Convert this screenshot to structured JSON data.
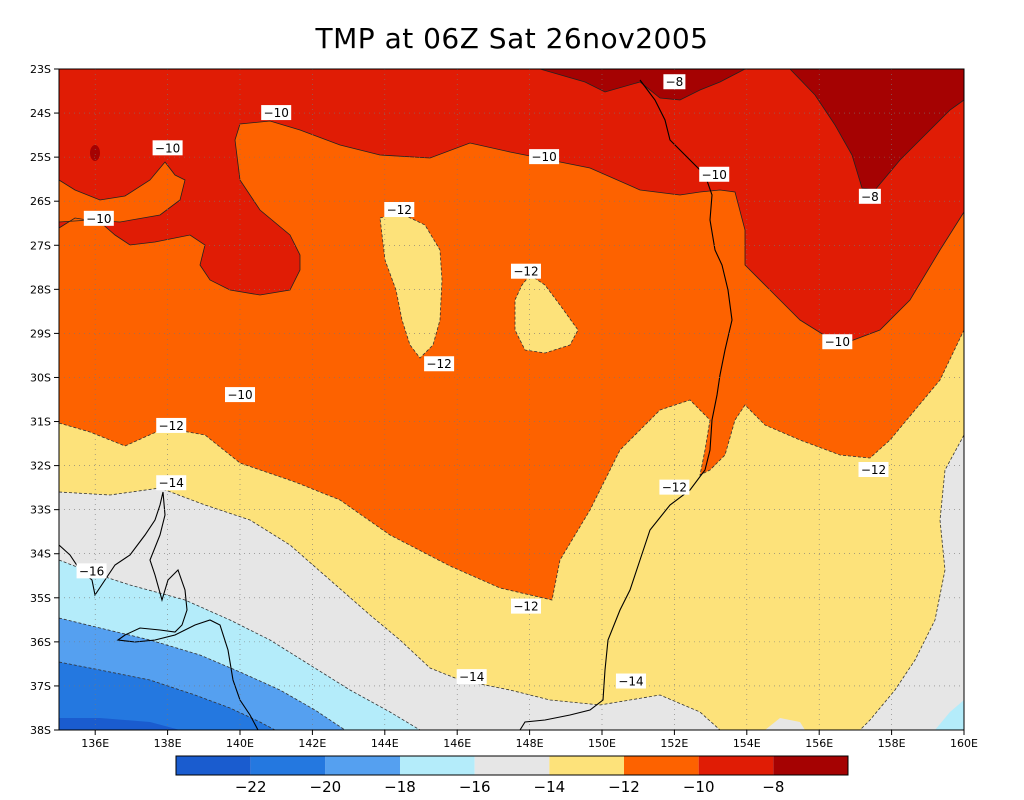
{
  "title": "TMP at 06Z Sat 26nov2005",
  "colors": {
    "band_below_-22": "#1a5ccf",
    "band_-22_-20": "#2478e0",
    "band_-20_-18": "#55a0f0",
    "band_-18_-16": "#b4ecfa",
    "band_-16_-14": "#e6e6e6",
    "band_-14_-12": "#fde27a",
    "band_-12_-10": "#fd6200",
    "band_-10_-8": "#e01c05",
    "band_above_-8": "#a50202"
  },
  "axes": {
    "lon_ticks": [
      "136E",
      "138E",
      "140E",
      "142E",
      "144E",
      "146E",
      "148E",
      "150E",
      "152E",
      "154E",
      "156E",
      "158E",
      "160E"
    ],
    "lat_ticks": [
      "23S",
      "24S",
      "25S",
      "26S",
      "27S",
      "28S",
      "29S",
      "30S",
      "31S",
      "32S",
      "33S",
      "34S",
      "35S",
      "36S",
      "37S",
      "38S"
    ],
    "lon_range": [
      135,
      160
    ],
    "lat_range": [
      -38,
      -23
    ],
    "grid": "dotted"
  },
  "contour_labels": [
    {
      "text": "-8",
      "lon": 152.0,
      "lat": -23.3
    },
    {
      "text": "-8",
      "lon": 157.4,
      "lat": -25.9
    },
    {
      "text": "-10",
      "lon": 141.0,
      "lat": -24.0
    },
    {
      "text": "-10",
      "lon": 138.0,
      "lat": -24.8
    },
    {
      "text": "-10",
      "lon": 136.1,
      "lat": -26.4
    },
    {
      "text": "-10",
      "lon": 148.4,
      "lat": -25.0
    },
    {
      "text": "-10",
      "lon": 153.1,
      "lat": -25.4
    },
    {
      "text": "-10",
      "lon": 140.0,
      "lat": -30.4
    },
    {
      "text": "-10",
      "lon": 156.5,
      "lat": -29.2
    },
    {
      "text": "-12",
      "lon": 144.4,
      "lat": -26.2
    },
    {
      "text": "-12",
      "lon": 147.9,
      "lat": -27.6
    },
    {
      "text": "-12",
      "lon": 145.5,
      "lat": -29.7
    },
    {
      "text": "-12",
      "lon": 138.1,
      "lat": -31.1
    },
    {
      "text": "-12",
      "lon": 152.0,
      "lat": -32.5
    },
    {
      "text": "-12",
      "lon": 157.5,
      "lat": -32.1
    },
    {
      "text": "-12",
      "lon": 147.9,
      "lat": -35.2
    },
    {
      "text": "-14",
      "lon": 138.1,
      "lat": -32.4
    },
    {
      "text": "-14",
      "lon": 146.4,
      "lat": -36.8
    },
    {
      "text": "-14",
      "lon": 150.8,
      "lat": -36.9
    },
    {
      "text": "-16",
      "lon": 135.9,
      "lat": -34.4
    }
  ],
  "colorbar": {
    "labels": [
      "−22",
      "−20",
      "−18",
      "−16",
      "−14",
      "−12",
      "−10",
      "−8"
    ],
    "colors": [
      "#1a5ccf",
      "#2478e0",
      "#55a0f0",
      "#b4ecfa",
      "#e6e6e6",
      "#fde27a",
      "#fd6200",
      "#e01c05",
      "#a50202"
    ]
  }
}
